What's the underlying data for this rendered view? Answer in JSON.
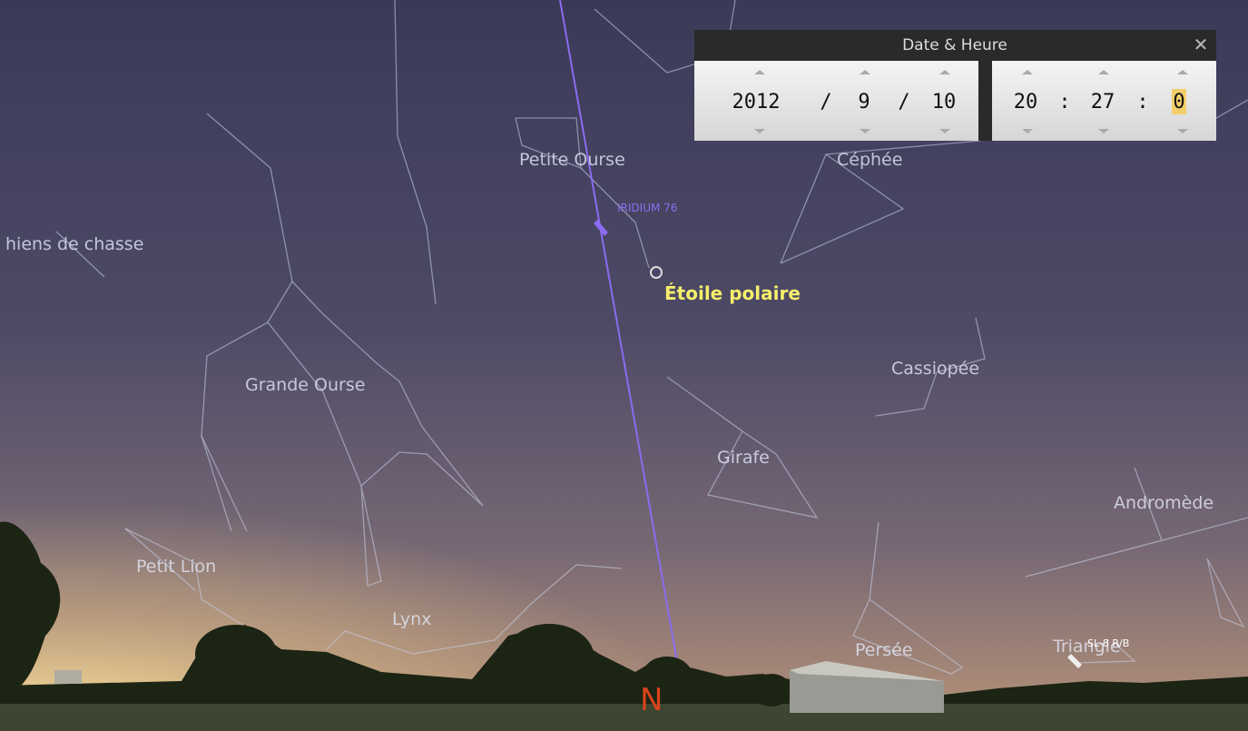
{
  "dialog": {
    "title": "Date & Heure",
    "close": "✕",
    "date": {
      "year": 2012,
      "month": 9,
      "day": 10,
      "separator": "/"
    },
    "time": {
      "hour": 20,
      "minute": 27,
      "second": 0,
      "separator": ":"
    }
  },
  "constellations": [
    "Petite Ourse",
    "Céphée",
    "hiens de chasse",
    "Grande Ourse",
    "Cassiopée",
    "Girafe",
    "Andromède",
    "Petit Lion",
    "Lynx",
    "Persée",
    "Triangle"
  ],
  "objects": {
    "satellite": "IRIDIUM 76",
    "star": "Étoile polaire",
    "rocket_body": "SL-8 R/B"
  },
  "cardinal": "N"
}
